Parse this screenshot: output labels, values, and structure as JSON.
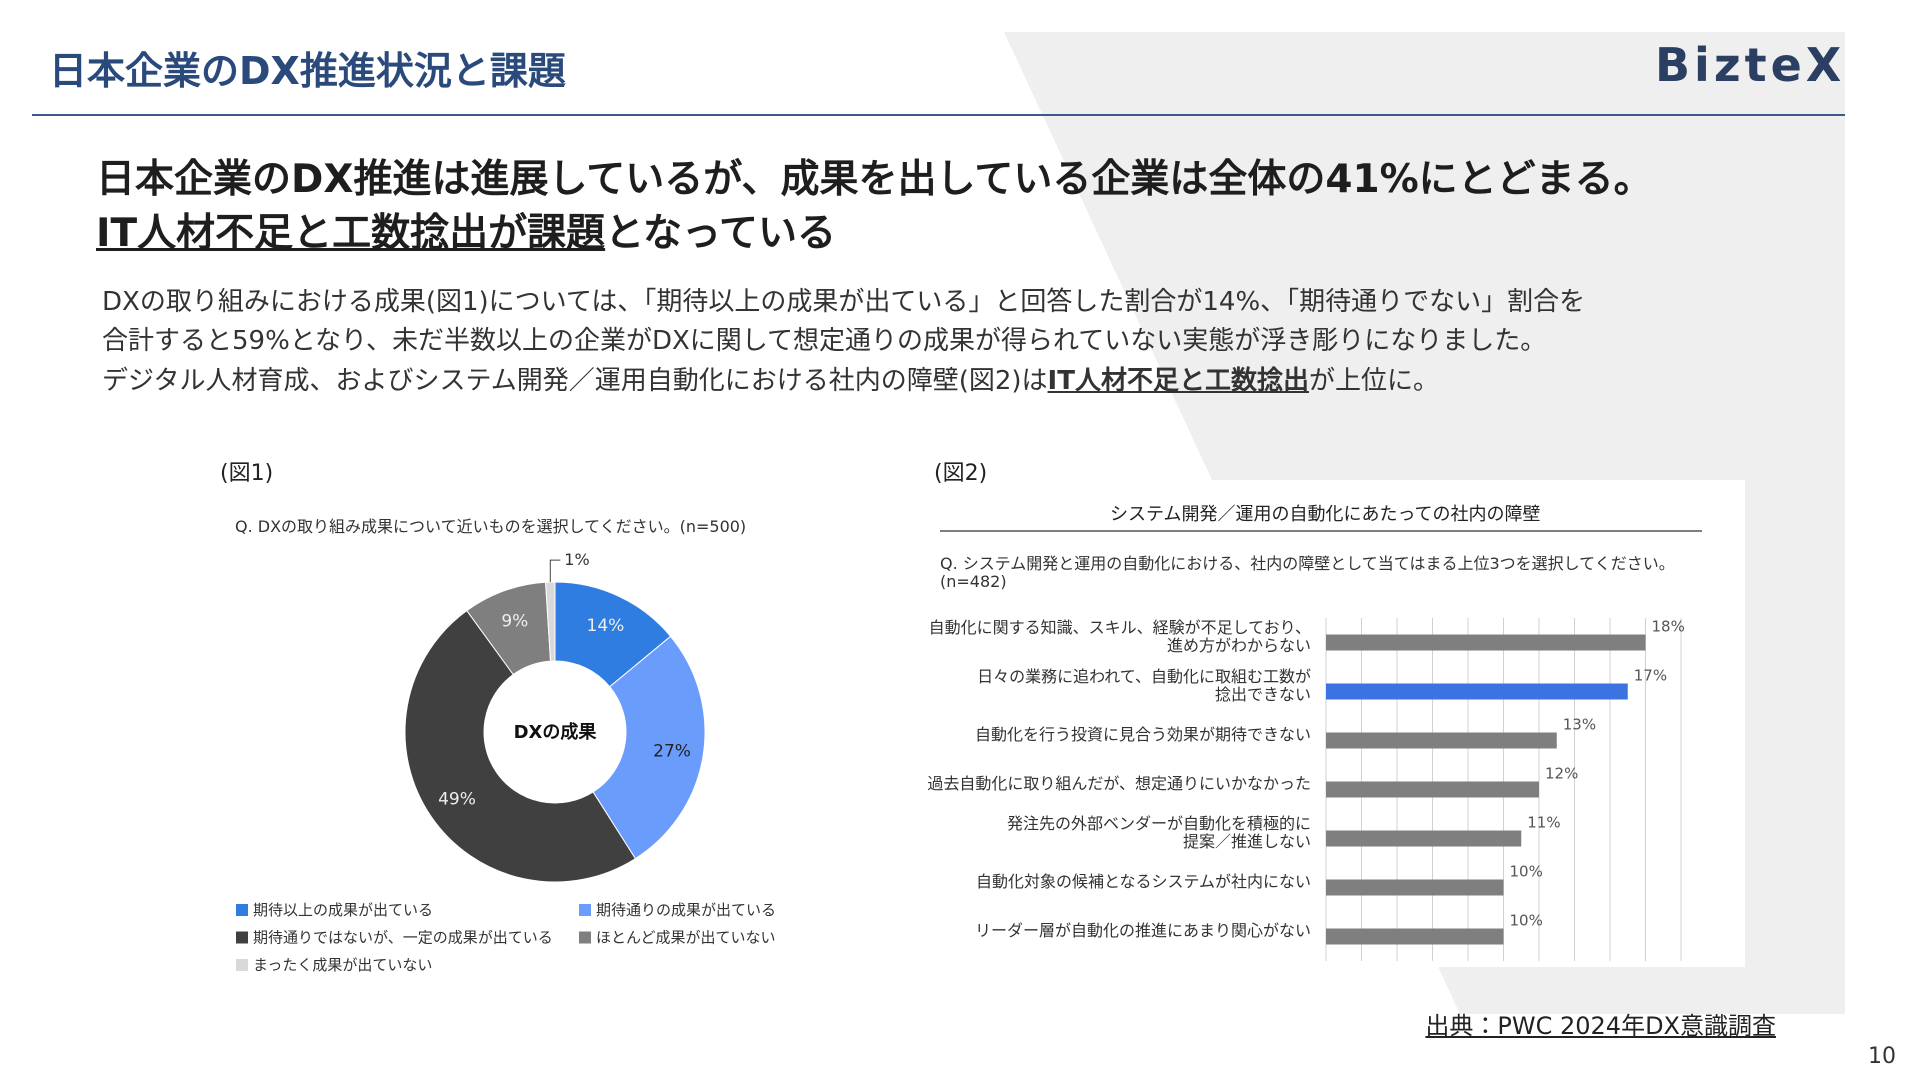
{
  "header": {
    "title": "日本企業のDX推進状況と課題",
    "logo": "BizteX"
  },
  "headline": {
    "line1": "日本企業のDX推進は進展しているが、成果を出している企業は全体の41%にとどまる。",
    "line2": {
      "emphasis": "IT人材不足と工数捻出が課題",
      "tail": "となっている"
    }
  },
  "body": {
    "line1": "DXの取り組みにおける成果(図1)については、「期待以上の成果が出ている」と回答した割合が14%、「期待通りでない」割合を",
    "line2": "合計すると59%となり、未だ半数以上の企業がDXに関して想定通りの成果が得られていない実態が浮き彫りになりました。",
    "line3": {
      "lead": "デジタル人材育成、およびシステム開発／運用自動化における社内の障壁(図2)は",
      "emphasis": "IT人材不足と工数捻出",
      "tail": "が上位に。"
    }
  },
  "chart_data": [
    {
      "type": "pie",
      "caption": "(図1)",
      "subtitle": "Q. DXの取り組み成果について近いものを選択してください。(n=500)",
      "center_label": "DXの成果",
      "donut": true,
      "categories": [
        "期待以上の成果が出ている",
        "期待通りの成果が出ている",
        "期待通りではないが、一定の成果が出ている",
        "ほとんど成果が出ていない",
        "まったく成果が出ていない"
      ],
      "values": [
        14,
        27,
        49,
        9,
        1
      ],
      "value_labels": [
        "14%",
        "27%",
        "49%",
        "9%",
        "1%"
      ],
      "colors": [
        "#2f7de1",
        "#6a9cfb",
        "#404040",
        "#7f7f7f",
        "#d9d9d9"
      ]
    },
    {
      "type": "bar",
      "orientation": "horizontal",
      "caption": "(図2)",
      "title": "システム開発／運用の自動化にあたっての社内の障壁",
      "subtitle": "Q. システム開発と運用の自動化における、社内の障壁として当てはまる上位3つを選択してください。\n(n=482)",
      "categories": [
        "自動化に関する知識、スキル、経験が不足しており、\n進め方がわからない",
        "日々の業務に追われて、自動化に取組む工数が\n捻出できない",
        "自動化を行う投資に見合う効果が期待できない",
        "過去自動化に取り組んだが、想定通りにいかなかった",
        "発注先の外部ベンダーが自動化を積極的に\n提案／推進しない",
        "自動化対象の候補となるシステムが社内にない",
        "リーダー層が自動化の推進にあまり関心がない"
      ],
      "values": [
        18,
        17,
        13,
        12,
        11,
        10,
        10
      ],
      "value_labels": [
        "18%",
        "17%",
        "13%",
        "12%",
        "11%",
        "10%",
        "10%"
      ],
      "colors": [
        "#7f7f7f",
        "#3b73e3",
        "#7f7f7f",
        "#7f7f7f",
        "#7f7f7f",
        "#7f7f7f",
        "#7f7f7f"
      ],
      "xlim": [
        0,
        20
      ],
      "xticks": [
        0,
        2,
        4,
        6,
        8,
        10,
        12,
        14,
        16,
        18,
        20
      ],
      "grid": true
    }
  ],
  "source": "出典：PWC 2024年DX意識調査",
  "page_number": "10"
}
